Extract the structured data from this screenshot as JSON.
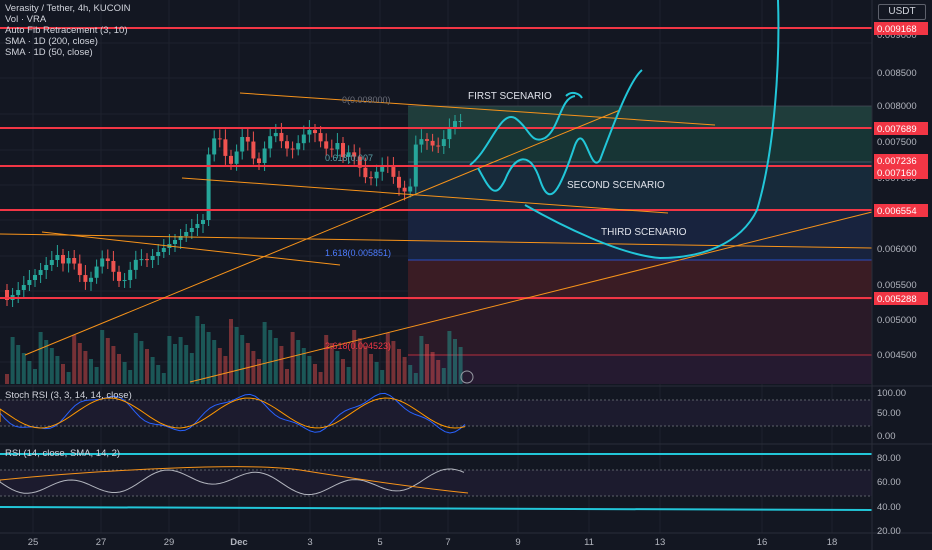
{
  "legend": {
    "symbol": "Verasity / Tether, 4h, KUCOIN",
    "vol": "Vol · VRA",
    "fib": "Auto Fib Retracement (3, 10)",
    "sma200": "SMA · 1D (200, close)",
    "sma50": "SMA · 1D (50, close)"
  },
  "currency_button": "USDT",
  "stoch_title": "Stoch RSI (3, 3, 14, 14, close)",
  "rsi_title": "RSI (14, close, SMA, 14, 2)",
  "colors": {
    "background": "#131722",
    "up": "#26a69a",
    "down": "#ef5350",
    "hline": "#f23645",
    "trend": "#f7931a",
    "drawing": "#22c6d8",
    "stoch_k": "#2962ff",
    "stoch_d": "#ff9800"
  },
  "price_axis": {
    "ticks": [
      "0.009000",
      "0.008500",
      "0.008000",
      "0.007500",
      "0.007000",
      "0.006500",
      "0.006000",
      "0.005500",
      "0.005000",
      "0.004500"
    ],
    "badges": [
      {
        "label": "0.009168",
        "color": "#f23645"
      },
      {
        "label": "0.007689",
        "color": "#f23645"
      },
      {
        "label": "0.007236",
        "color": "#f23645"
      },
      {
        "label": "0.007160",
        "color": "#f23645"
      },
      {
        "label": "0.006554",
        "color": "#f23645"
      },
      {
        "label": "0.005288",
        "color": "#f23645"
      }
    ]
  },
  "stoch_axis": [
    "100.00",
    "50.00",
    "0.00"
  ],
  "rsi_axis": [
    "80.00",
    "60.00",
    "40.00",
    "20.00"
  ],
  "time_axis": [
    "25",
    "27",
    "29",
    "Dec",
    "3",
    "5",
    "7",
    "9",
    "11",
    "13",
    "16",
    "18"
  ],
  "annotations": {
    "first": "FIRST SCENARIO",
    "second": "SECOND SCENARIO",
    "third": "THIRD SCENARIO"
  },
  "fib_labels": {
    "f0": "0(0.008000)",
    "f618": "0.618(0.007",
    "f1618": "1.618(0.005851)",
    "f2618": "2.618(0.004523)"
  },
  "lightning_icon": "lightning-icon"
}
